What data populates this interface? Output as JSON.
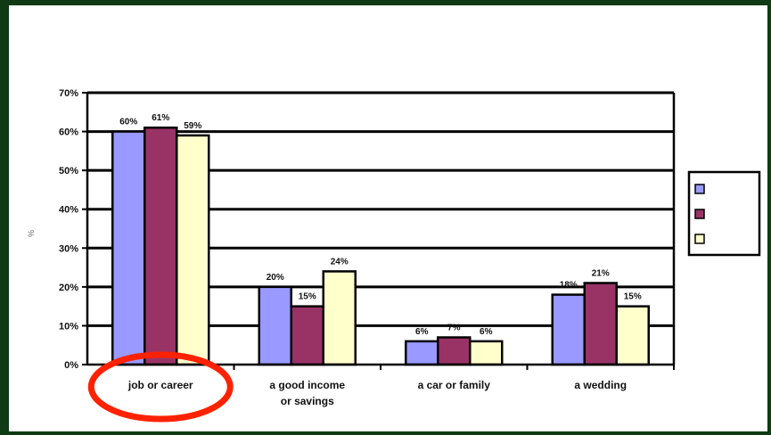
{
  "chart_data": {
    "type": "bar",
    "title": "",
    "subtitle": "",
    "ylabel": "%",
    "xlabel": "",
    "ylim": [
      0,
      70
    ],
    "yticks": [
      0,
      10,
      20,
      30,
      40,
      50,
      60,
      70
    ],
    "ytick_labels": [
      "0%",
      "10%",
      "20%",
      "30%",
      "40%",
      "50%",
      "60%",
      "70%"
    ],
    "grid": true,
    "legend_position": "right",
    "categories": [
      [
        "job or career"
      ],
      [
        "a good income",
        "or savings"
      ],
      [
        "a car or family"
      ],
      [
        "a wedding"
      ]
    ],
    "series": [
      {
        "name": "",
        "color": "#9999ff",
        "values": [
          60,
          20,
          6,
          18
        ]
      },
      {
        "name": "",
        "color": "#993366",
        "values": [
          61,
          15,
          7,
          21
        ]
      },
      {
        "name": "",
        "color": "#ffffcc",
        "values": [
          59,
          24,
          6,
          15
        ]
      }
    ],
    "data_labels": [
      [
        "60%",
        "20%",
        "6%",
        "18%"
      ],
      [
        "61%",
        "15%",
        "7%",
        "21%"
      ],
      [
        "59%",
        "24%",
        "6%",
        "15%"
      ]
    ],
    "annotation": {
      "shape": "ellipse",
      "color": "#ff2200",
      "target_category": 0
    }
  }
}
